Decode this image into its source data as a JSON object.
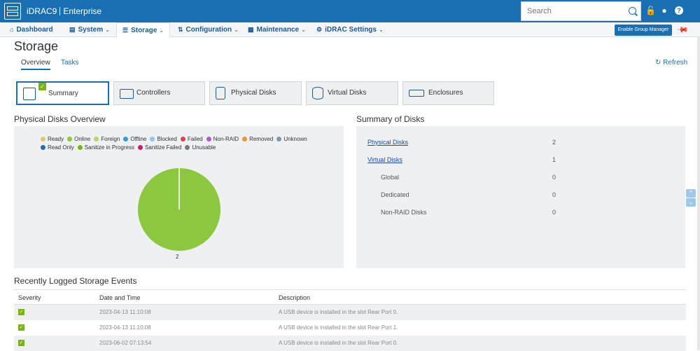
{
  "header": {
    "product": "iDRAC9",
    "edition": "Enterprise",
    "search_placeholder": "Search",
    "group_button": "Enable Group Manager"
  },
  "nav": [
    {
      "label": "Dashboard",
      "icon": "home-icon",
      "has_menu": false
    },
    {
      "label": "System",
      "icon": "server-icon",
      "has_menu": true
    },
    {
      "label": "Storage",
      "icon": "storage-icon",
      "has_menu": true,
      "active": true
    },
    {
      "label": "Configuration",
      "icon": "sliders-icon",
      "has_menu": true
    },
    {
      "label": "Maintenance",
      "icon": "monitor-icon",
      "has_menu": true
    },
    {
      "label": "iDRAC Settings",
      "icon": "gear-icon",
      "has_menu": true
    }
  ],
  "page": {
    "title": "Storage",
    "tabs": [
      "Overview",
      "Tasks"
    ],
    "refresh": "Refresh"
  },
  "tiles": [
    {
      "label": "Summary",
      "icon": "summary-icon",
      "selected": true
    },
    {
      "label": "Controllers",
      "icon": "controller-icon"
    },
    {
      "label": "Physical Disks",
      "icon": "physical-disk-icon"
    },
    {
      "label": "Virtual Disks",
      "icon": "virtual-disk-icon"
    },
    {
      "label": "Enclosures",
      "icon": "enclosure-icon"
    }
  ],
  "physical_overview": {
    "title": "Physical Disks Overview",
    "legend": [
      {
        "label": "Ready",
        "color": "#e8c56b"
      },
      {
        "label": "Online",
        "color": "#8dc63f"
      },
      {
        "label": "Foreign",
        "color": "#b5d86b"
      },
      {
        "label": "Offline",
        "color": "#3a9ad9"
      },
      {
        "label": "Blocked",
        "color": "#8ec5ec"
      },
      {
        "label": "Failed",
        "color": "#e0404a"
      },
      {
        "label": "Non-RAID",
        "color": "#b05cc8"
      },
      {
        "label": "Removed",
        "color": "#f0962e"
      },
      {
        "label": "Unknown",
        "color": "#7a98b0"
      },
      {
        "label": "Read Only",
        "color": "#1e6bb8"
      },
      {
        "label": "Sanitize in Progress",
        "color": "#7ab317"
      },
      {
        "label": "Sanitize Failed",
        "color": "#c81e7a"
      },
      {
        "label": "Unusable",
        "color": "#7a7a7a"
      }
    ]
  },
  "chart_data": {
    "type": "pie",
    "title": "",
    "categories": [
      "Online"
    ],
    "values": [
      2
    ],
    "colors": [
      "#8dc63f"
    ],
    "data_labels": [
      "2"
    ]
  },
  "disk_summary": {
    "title": "Summary of Disks",
    "rows": [
      {
        "label": "Physical Disks",
        "value": "2",
        "link": true
      },
      {
        "label": "Virtual Disks",
        "value": "1",
        "link": true
      },
      {
        "label": "Global",
        "value": "0",
        "link": false
      },
      {
        "label": "Dedicated",
        "value": "0",
        "link": false
      },
      {
        "label": "Non-RAID Disks",
        "value": "0",
        "link": false
      }
    ]
  },
  "events": {
    "title": "Recently Logged Storage Events",
    "columns": [
      "Severity",
      "Date and Time",
      "Description"
    ],
    "rows": [
      {
        "severity": "ok",
        "datetime": "2023-04-13 11:10:08",
        "description": "A USB device is installed in the slot Rear Port 0."
      },
      {
        "severity": "ok",
        "datetime": "2023-04-13 11:10:08",
        "description": "A USB device is installed in the slot Rear Port 1."
      },
      {
        "severity": "ok",
        "datetime": "2023-06-02 07:13:54",
        "description": "A USB device is installed in the slot Rear Port 0."
      }
    ]
  }
}
